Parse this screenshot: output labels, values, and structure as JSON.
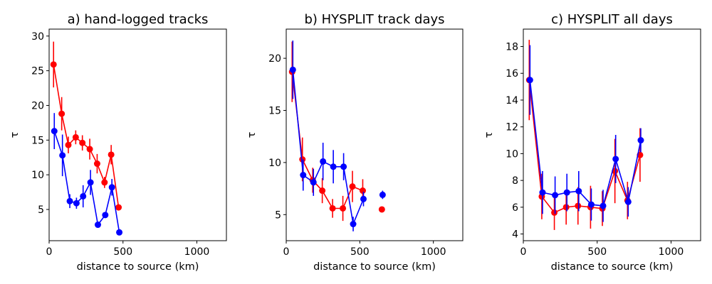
{
  "chart_data": [
    {
      "type": "line",
      "title": "a) hand-logged tracks",
      "xlabel": "distance to source (km)",
      "ylabel": "τ",
      "xlim": [
        0,
        1200
      ],
      "ylim": [
        0.5,
        31
      ],
      "xticks": [
        0,
        500,
        1000
      ],
      "yticks": [
        5,
        10,
        15,
        20,
        25,
        30
      ],
      "grid": false,
      "series": [
        {
          "name": "red",
          "color": "#ff0000",
          "x": [
            30,
            85,
            130,
            180,
            225,
            275,
            325,
            375,
            420,
            470
          ],
          "y": [
            25.9,
            18.8,
            14.3,
            15.4,
            14.6,
            13.7,
            11.6,
            8.9,
            12.9,
            5.3
          ],
          "err": [
            3.3,
            2.4,
            1.2,
            1.0,
            1.1,
            1.5,
            1.4,
            0.8,
            1.4,
            0.0
          ]
        },
        {
          "name": "blue",
          "color": "#0000ff",
          "x": [
            35,
            90,
            140,
            185,
            230,
            280,
            330,
            380,
            425,
            475
          ],
          "y": [
            16.3,
            12.8,
            6.2,
            5.9,
            6.9,
            8.9,
            2.8,
            4.2,
            8.2,
            1.7
          ],
          "err": [
            2.6,
            3.0,
            1.0,
            0.8,
            1.6,
            1.8,
            0.0,
            0.0,
            1.2,
            0.0
          ]
        }
      ]
    },
    {
      "type": "line",
      "title": "b) HYSPLIT track days",
      "xlabel": "distance to source (km)",
      "ylabel": "τ",
      "xlim": [
        0,
        1200
      ],
      "ylim": [
        2.5,
        22.8
      ],
      "xticks": [
        0,
        500,
        1000
      ],
      "yticks": [
        5,
        10,
        15,
        20
      ],
      "grid": false,
      "series": [
        {
          "name": "red",
          "color": "#ff0000",
          "x": [
            40,
            110,
            180,
            245,
            315,
            385,
            450,
            520
          ],
          "y": [
            18.7,
            10.3,
            8.3,
            7.3,
            5.6,
            5.6,
            7.7,
            7.3
          ],
          "err": [
            2.9,
            2.1,
            1.2,
            1.2,
            0.9,
            1.2,
            1.5,
            1.1
          ],
          "extra_x": [
            650
          ],
          "extra_y": [
            5.5
          ],
          "extra_err": [
            0.0
          ]
        },
        {
          "name": "blue",
          "color": "#0000ff",
          "x": [
            45,
            115,
            185,
            250,
            320,
            390,
            455,
            525
          ],
          "y": [
            18.9,
            8.8,
            8.1,
            10.1,
            9.6,
            9.6,
            4.1,
            6.5
          ],
          "err": [
            2.8,
            1.5,
            1.3,
            1.8,
            1.6,
            1.3,
            0.7,
            0.7
          ],
          "extra_x": [
            655
          ],
          "extra_y": [
            6.9
          ],
          "extra_err": [
            0.4
          ]
        }
      ]
    },
    {
      "type": "line",
      "title": "c) HYSPLIT all days",
      "xlabel": "distance to source (km)",
      "ylabel": "τ",
      "xlim": [
        0,
        1200
      ],
      "ylim": [
        3.5,
        19.3
      ],
      "xticks": [
        0,
        500,
        1000
      ],
      "yticks": [
        4,
        6,
        8,
        10,
        12,
        14,
        16,
        18
      ],
      "grid": false,
      "series": [
        {
          "name": "red",
          "color": "#ff0000",
          "x": [
            40,
            125,
            210,
            290,
            370,
            455,
            535,
            620,
            705,
            790
          ],
          "y": [
            15.5,
            6.8,
            5.6,
            6.0,
            6.1,
            6.0,
            5.9,
            8.7,
            6.5,
            9.9
          ],
          "err": [
            3.0,
            1.7,
            1.3,
            1.3,
            1.4,
            1.6,
            1.3,
            2.4,
            1.4,
            2.0
          ]
        },
        {
          "name": "blue",
          "color": "#0000ff",
          "x": [
            45,
            130,
            215,
            295,
            375,
            460,
            540,
            625,
            710,
            795
          ],
          "y": [
            15.5,
            7.1,
            6.9,
            7.1,
            7.2,
            6.2,
            6.1,
            9.6,
            6.4,
            11.0
          ],
          "err": [
            2.6,
            1.6,
            1.4,
            1.4,
            1.5,
            1.2,
            1.2,
            1.8,
            1.1,
            0.9
          ]
        }
      ]
    }
  ]
}
